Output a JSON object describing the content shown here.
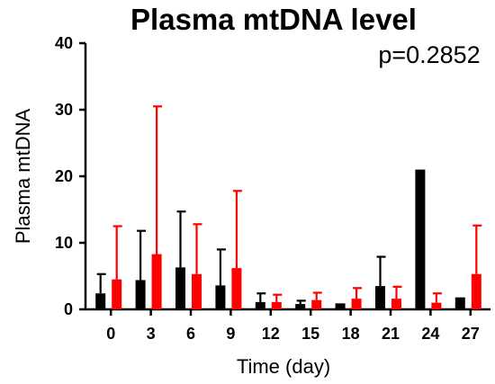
{
  "chart_data": {
    "type": "bar",
    "title": "Plasma mtDNA level",
    "annotation": "p=0.2852",
    "xlabel": "Time (day)",
    "ylabel": "Plasma mtDNA",
    "ylim": [
      0,
      40
    ],
    "yticks": [
      "0",
      "10",
      "20",
      "30",
      "40"
    ],
    "categories": [
      "0",
      "3",
      "6",
      "9",
      "12",
      "15",
      "18",
      "21",
      "24",
      "27"
    ],
    "grid": false,
    "legend": "none",
    "series": [
      {
        "color": "#000000",
        "values": [
          2.4,
          4.4,
          6.3,
          3.6,
          1.1,
          0.8,
          0.9,
          3.5,
          21.0,
          1.8
        ],
        "error_upper": [
          5.3,
          11.8,
          14.7,
          9.0,
          2.4,
          1.3,
          0.9,
          7.9,
          21.0,
          1.8
        ]
      },
      {
        "color": "#ff0000",
        "values": [
          4.5,
          8.3,
          5.3,
          6.2,
          1.1,
          1.4,
          1.6,
          1.6,
          1.0,
          5.3
        ],
        "error_upper": [
          12.5,
          30.5,
          12.8,
          17.8,
          2.2,
          2.5,
          3.2,
          3.4,
          2.4,
          12.6
        ]
      }
    ]
  }
}
